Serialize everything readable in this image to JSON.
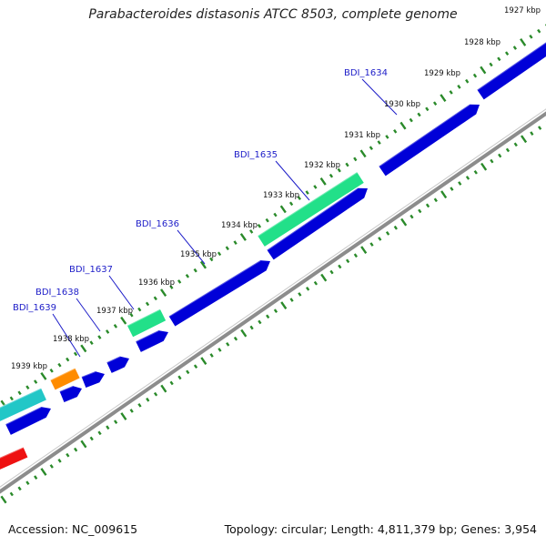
{
  "title": "Parabacteroides distasonis ATCC 8503, complete genome",
  "footer": {
    "accession_label": "Accession:",
    "accession": "NC_009615",
    "topology_label": "Topology:",
    "topology": "circular",
    "length_label": "Length:",
    "length": "4,811,379 bp",
    "genes_label": "Genes:",
    "genes": "3,954"
  },
  "colors": {
    "backbone": "#8c8c8c",
    "tick": "#2a8a2a",
    "leader": "#1d1dc8",
    "forward_gene_dark_blue": "#0000d8",
    "teal_gene": "#22c7c7",
    "green_gene": "#22e089",
    "orange_gene": "#ff8c00",
    "red_gene": "#ee1111"
  },
  "ruler": {
    "unit": "kbp",
    "ticks": [
      {
        "label": "1927 kbp"
      },
      {
        "label": "1928 kbp"
      },
      {
        "label": "1929 kbp"
      },
      {
        "label": "1930 kbp"
      },
      {
        "label": "1931 kbp"
      },
      {
        "label": "1932 kbp"
      },
      {
        "label": "1933 kbp"
      },
      {
        "label": "1934 kbp"
      },
      {
        "label": "1935 kbp"
      },
      {
        "label": "1936 kbp"
      },
      {
        "label": "1937 kbp"
      },
      {
        "label": "1938 kbp"
      },
      {
        "label": "1939 kbp"
      }
    ]
  },
  "gene_labels": [
    {
      "name": "BDI_1634"
    },
    {
      "name": "BDI_1635"
    },
    {
      "name": "BDI_1636"
    },
    {
      "name": "BDI_1637"
    },
    {
      "name": "BDI_1638"
    },
    {
      "name": "BDI_1639"
    }
  ]
}
